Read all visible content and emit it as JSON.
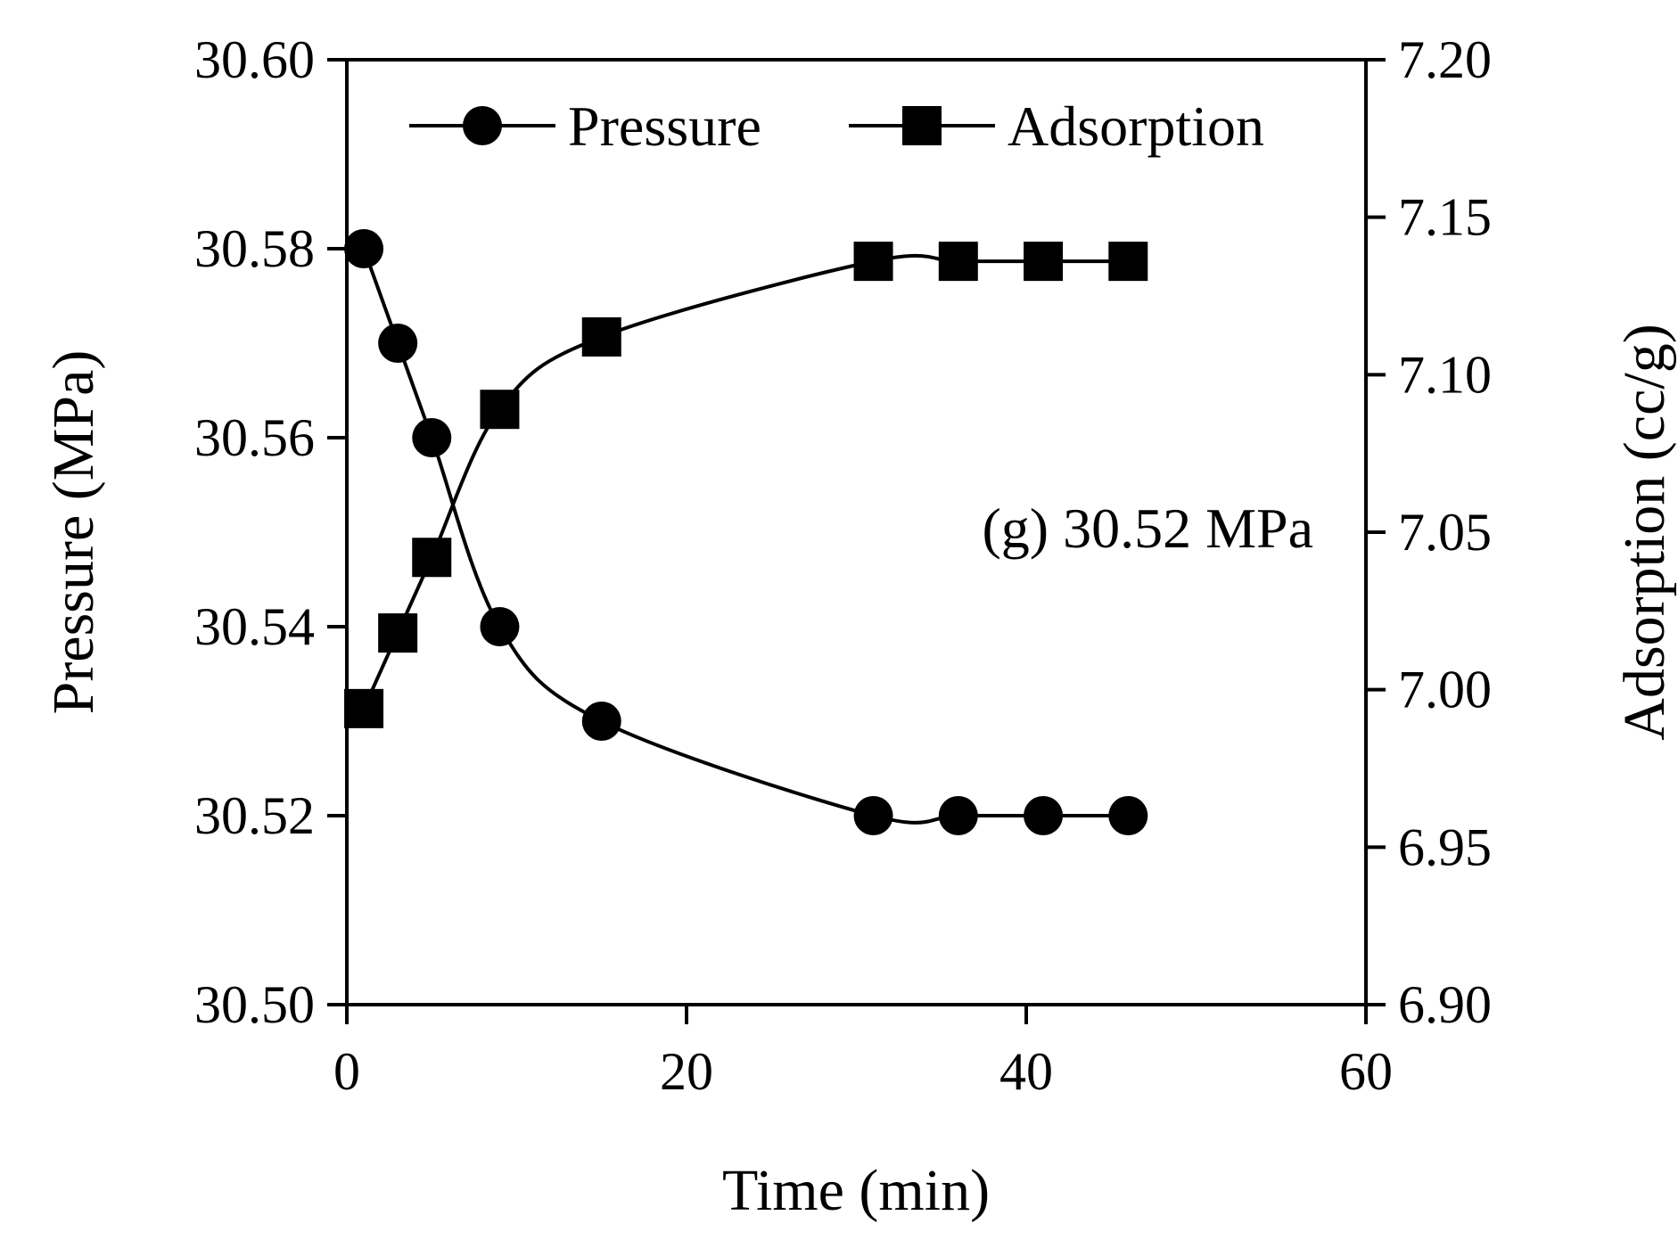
{
  "chart_data": {
    "type": "line",
    "xlabel": "Time (min)",
    "ylabel": "Pressure (MPa)",
    "y2label": "Adsorption (cc/g)",
    "xlim": [
      0,
      60
    ],
    "ylim": [
      30.5,
      30.6
    ],
    "y2lim": [
      6.9,
      7.2
    ],
    "xticks": [
      "0",
      "20",
      "40",
      "60"
    ],
    "yticks": [
      "30.50",
      "30.52",
      "30.54",
      "30.56",
      "30.58",
      "30.60"
    ],
    "y2ticks": [
      "6.90",
      "6.95",
      "7.00",
      "7.05",
      "7.10",
      "7.15",
      "7.20"
    ],
    "annotation": "(g) 30.52 MPa",
    "legend_position": "top",
    "series": [
      {
        "name": "Pressure",
        "axis": "left",
        "marker": "circle",
        "x": [
          1,
          3,
          5,
          9,
          15,
          31,
          36,
          41,
          46
        ],
        "values": [
          30.58,
          30.57,
          30.56,
          30.54,
          30.53,
          30.52,
          30.52,
          30.52,
          30.52
        ]
      },
      {
        "name": "Adsorption",
        "axis": "right",
        "marker": "square",
        "x": [
          1,
          3,
          5,
          9,
          15,
          31,
          36,
          41,
          46
        ],
        "values": [
          6.994,
          7.018,
          7.042,
          7.089,
          7.112,
          7.136,
          7.136,
          7.136,
          7.136
        ]
      }
    ]
  }
}
